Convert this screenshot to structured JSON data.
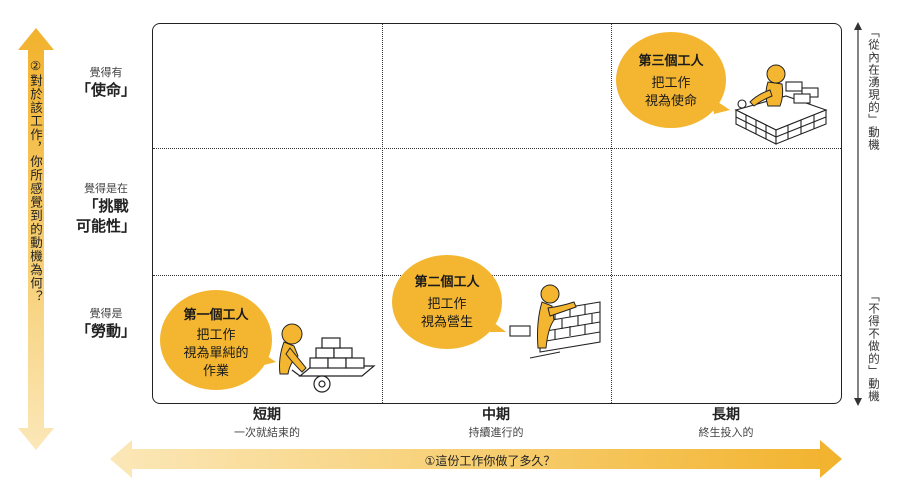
{
  "y_axis": {
    "title": "②對於該工作，你所感覺到的動機為何？"
  },
  "x_axis": {
    "title": "①這份工作你做了多久？"
  },
  "rows": [
    {
      "small": "覺得有",
      "big": "「使命」"
    },
    {
      "small": "覺得是在",
      "big": "「挑戰",
      "big2": "可能性」"
    },
    {
      "small": "覺得是",
      "big": "「勞動」"
    }
  ],
  "columns": [
    {
      "big": "短期",
      "small": "一次就結束的"
    },
    {
      "big": "中期",
      "small": "持續進行的"
    },
    {
      "big": "長期",
      "small": "終生投入的"
    }
  ],
  "right_labels": {
    "top": "「從內在湧現的」動機",
    "bottom": "「不得不做的」動機"
  },
  "workers": [
    {
      "title": "第一個工人",
      "line1": "把工作",
      "line2": "視為單純的",
      "line3": "作業"
    },
    {
      "title": "第二個工人",
      "line1": "把工作",
      "line2": "視為營生"
    },
    {
      "title": "第三個工人",
      "line1": "把工作",
      "line2": "視為使命"
    }
  ],
  "colors": {
    "accent": "#f4b630",
    "arrow": "#f2b22c"
  }
}
